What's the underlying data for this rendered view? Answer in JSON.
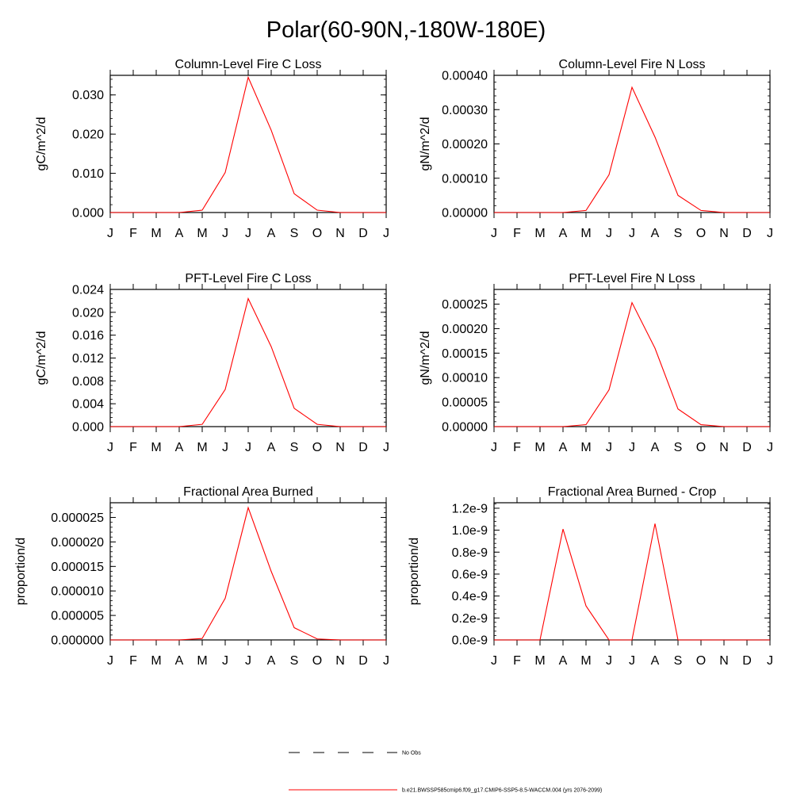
{
  "title": "Polar(60-90N,-180W-180E)",
  "colors": {
    "model": "#ff0000",
    "obs": "#000000",
    "axis": "#000000"
  },
  "months": [
    "J",
    "F",
    "M",
    "A",
    "M",
    "J",
    "J",
    "A",
    "S",
    "O",
    "N",
    "D",
    "J"
  ],
  "chart_data": [
    {
      "type": "line",
      "title": "Column-Level Fire C Loss",
      "ylabel": "gC/m^2/d",
      "ylim": [
        0,
        0.035
      ],
      "yticks": [
        0,
        0.01,
        0.02,
        0.03
      ],
      "ytick_labels": [
        "0.000",
        "0.010",
        "0.020",
        "0.030"
      ],
      "values": [
        0,
        0,
        0,
        0,
        0.0006,
        0.0102,
        0.0345,
        0.021,
        0.0048,
        0.0006,
        0,
        0,
        0
      ]
    },
    {
      "type": "line",
      "title": "Column-Level Fire N Loss",
      "ylabel": "gN/m^2/d",
      "ylim": [
        0,
        0.0004
      ],
      "yticks": [
        0,
        0.0001,
        0.0002,
        0.0003,
        0.0004
      ],
      "ytick_labels": [
        "0.00000",
        "0.00010",
        "0.00020",
        "0.00030",
        "0.00040"
      ],
      "values": [
        0,
        0,
        0,
        0,
        6e-06,
        0.00011,
        0.000365,
        0.00022,
        5e-05,
        6e-06,
        0,
        0,
        0
      ]
    },
    {
      "type": "line",
      "title": "PFT-Level Fire C Loss",
      "ylabel": "gC/m^2/d",
      "ylim": [
        0,
        0.024
      ],
      "yticks": [
        0,
        0.004,
        0.008,
        0.012,
        0.016,
        0.02,
        0.024
      ],
      "ytick_labels": [
        "0.000",
        "0.004",
        "0.008",
        "0.012",
        "0.016",
        "0.020",
        "0.024"
      ],
      "values": [
        0,
        0,
        0,
        0,
        0.0004,
        0.0065,
        0.0224,
        0.014,
        0.0032,
        0.0004,
        0,
        0,
        0
      ]
    },
    {
      "type": "line",
      "title": "PFT-Level Fire N Loss",
      "ylabel": "gN/m^2/d",
      "ylim": [
        0,
        0.00028
      ],
      "yticks": [
        0,
        5e-05,
        0.0001,
        0.00015,
        0.0002,
        0.00025
      ],
      "ytick_labels": [
        "0.00000",
        "0.00005",
        "0.00010",
        "0.00015",
        "0.00020",
        "0.00025"
      ],
      "values": [
        0,
        0,
        0,
        0,
        4e-06,
        7.5e-05,
        0.000253,
        0.00016,
        3.6e-05,
        4e-06,
        0,
        0,
        0
      ]
    },
    {
      "type": "line",
      "title": "Fractional Area Burned",
      "ylabel": "proportion/d",
      "ylim": [
        0,
        2.8e-05
      ],
      "yticks": [
        0,
        5e-06,
        1e-05,
        1.5e-05,
        2e-05,
        2.5e-05
      ],
      "ytick_labels": [
        "0.000000",
        "0.000005",
        "0.000010",
        "0.000015",
        "0.000020",
        "0.000025"
      ],
      "values": [
        0,
        0,
        0,
        0,
        3e-07,
        8.5e-06,
        2.7e-05,
        1.4e-05,
        2.5e-06,
        2e-07,
        0,
        0,
        0
      ]
    },
    {
      "type": "line",
      "title": "Fractional Area Burned - Crop",
      "ylabel": "proportion/d",
      "ylim": [
        0,
        1.25e-09
      ],
      "yticks": [
        0,
        2e-10,
        4e-10,
        6e-10,
        8e-10,
        1e-09,
        1.2e-09
      ],
      "ytick_labels": [
        "0.0e-9",
        "0.2e-9",
        "0.4e-9",
        "0.6e-9",
        "0.8e-9",
        "1.0e-9",
        "1.2e-9"
      ],
      "values": [
        0,
        0,
        0,
        1.01e-09,
        3.1e-10,
        0,
        0,
        1.06e-09,
        0,
        0,
        0,
        0,
        0
      ]
    }
  ],
  "legend": [
    {
      "label": "No Obs",
      "style": "dashed",
      "color": "#000000"
    },
    {
      "label": "b.e21.BWSSP585cmip6.f09_g17.CMIP6-SSP5-8.5-WACCM.004 (yrs 2076-2099)",
      "style": "solid",
      "color": "#ff0000"
    }
  ]
}
